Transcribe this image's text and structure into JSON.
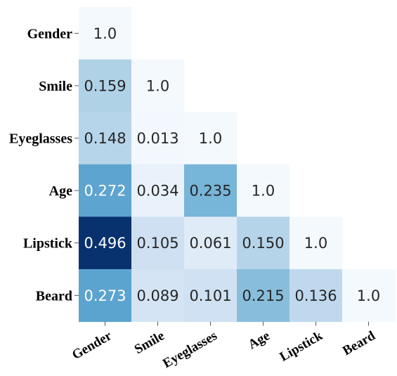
{
  "chart_data": {
    "type": "heatmap",
    "title": "",
    "xlabel": "",
    "ylabel": "",
    "colormap": "Blues",
    "value_range": [
      0,
      0.5
    ],
    "row_labels": [
      "Gender",
      "Smile",
      "Eyeglasses",
      "Age",
      "Lipstick",
      "Beard"
    ],
    "col_labels": [
      "Gender",
      "Smile",
      "Eyeglasses",
      "Age",
      "Lipstick",
      "Beard"
    ],
    "layout": "lower-triangle",
    "cells": [
      {
        "row": "Gender",
        "col": "Gender",
        "label": "1.0",
        "value": 1.0
      },
      {
        "row": "Smile",
        "col": "Gender",
        "label": "0.159",
        "value": 0.159
      },
      {
        "row": "Smile",
        "col": "Smile",
        "label": "1.0",
        "value": 1.0
      },
      {
        "row": "Eyeglasses",
        "col": "Gender",
        "label": "0.148",
        "value": 0.148
      },
      {
        "row": "Eyeglasses",
        "col": "Smile",
        "label": "0.013",
        "value": 0.013
      },
      {
        "row": "Eyeglasses",
        "col": "Eyeglasses",
        "label": "1.0",
        "value": 1.0
      },
      {
        "row": "Age",
        "col": "Gender",
        "label": "0.272",
        "value": 0.272
      },
      {
        "row": "Age",
        "col": "Smile",
        "label": "0.034",
        "value": 0.034
      },
      {
        "row": "Age",
        "col": "Eyeglasses",
        "label": "0.235",
        "value": 0.235
      },
      {
        "row": "Age",
        "col": "Age",
        "label": "1.0",
        "value": 1.0
      },
      {
        "row": "Lipstick",
        "col": "Gender",
        "label": "0.496",
        "value": 0.496
      },
      {
        "row": "Lipstick",
        "col": "Smile",
        "label": "0.105",
        "value": 0.105
      },
      {
        "row": "Lipstick",
        "col": "Eyeglasses",
        "label": "0.061",
        "value": 0.061
      },
      {
        "row": "Lipstick",
        "col": "Age",
        "label": "0.150",
        "value": 0.15
      },
      {
        "row": "Lipstick",
        "col": "Lipstick",
        "label": "1.0",
        "value": 1.0
      },
      {
        "row": "Beard",
        "col": "Gender",
        "label": "0.273",
        "value": 0.273
      },
      {
        "row": "Beard",
        "col": "Smile",
        "label": "0.089",
        "value": 0.089
      },
      {
        "row": "Beard",
        "col": "Eyeglasses",
        "label": "0.101",
        "value": 0.101
      },
      {
        "row": "Beard",
        "col": "Age",
        "label": "0.215",
        "value": 0.215
      },
      {
        "row": "Beard",
        "col": "Lipstick",
        "label": "0.136",
        "value": 0.136
      },
      {
        "row": "Beard",
        "col": "Beard",
        "label": "1.0",
        "value": 1.0
      }
    ]
  }
}
